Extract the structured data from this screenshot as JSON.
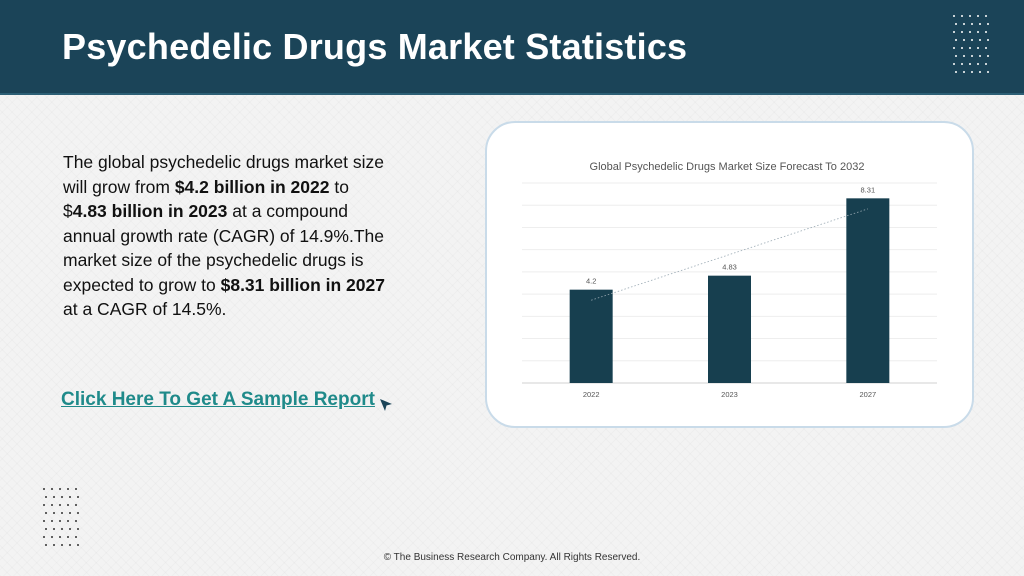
{
  "header": {
    "title": "Psychedelic Drugs Market Statistics"
  },
  "content": {
    "paragraph": [
      {
        "text": "The global psychedelic drugs market size will grow from ",
        "bold": false
      },
      {
        "text": "$4.2 billion in 2022",
        "bold": true
      },
      {
        "text": " to $",
        "bold": false
      },
      {
        "text": "4.83 billion in 2023",
        "bold": true
      },
      {
        "text": " at a compound annual growth rate (CAGR) of 14.9%.The market size of the psychedelic drugs is expected to grow to ",
        "bold": false
      },
      {
        "text": "$8.31 billion in 2027",
        "bold": true
      },
      {
        "text": " at a CAGR of 14.5%.",
        "bold": false
      }
    ],
    "cta_label": "Click Here To Get A Sample Report"
  },
  "colors": {
    "header_bg": "#1b4458",
    "bar": "#173f4f",
    "link": "#1f8a8a"
  },
  "chart_data": {
    "type": "bar",
    "title": "Global Psychedelic Drugs Market Size Forecast To 2032",
    "categories": [
      "2022",
      "2023",
      "2027"
    ],
    "values": [
      4.2,
      4.83,
      8.31
    ],
    "ylim": [
      0,
      9
    ],
    "grid": true,
    "trendline": true,
    "xlabel": "",
    "ylabel": ""
  },
  "footer": {
    "text": "© The Business Research Company. All Rights Reserved."
  }
}
